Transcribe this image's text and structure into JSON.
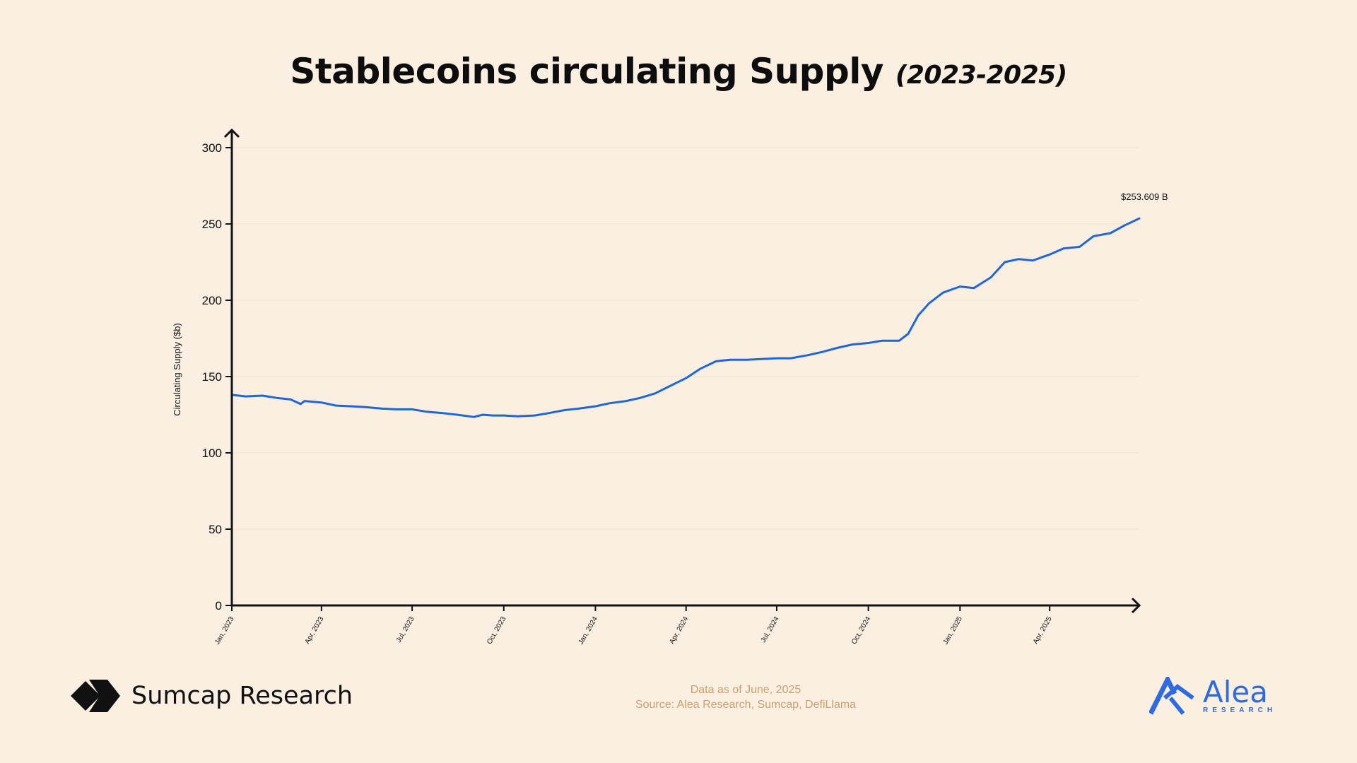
{
  "header": {
    "title": "Stablecoins circulating Supply",
    "subtitle": "(2023-2025)"
  },
  "footer": {
    "data_as_of": "Data as of June, 2025",
    "source": "Source: Alea Research, Sumcap, DefiLlama",
    "left_brand": "Sumcap Research",
    "right_brand": "Alea",
    "right_brand_sub": "RESEARCH"
  },
  "colors": {
    "background": "#fbefe1",
    "line": "#1f66d9",
    "brand_blue": "#2f6be0",
    "footer_text": "#c8a06f"
  },
  "chart_data": {
    "type": "line",
    "title": "Stablecoins circulating Supply (2023-2025)",
    "xlabel": "",
    "ylabel": "Circulating Supply ($b)",
    "ylim": [
      0,
      300
    ],
    "yticks": [
      0,
      50,
      100,
      150,
      200,
      250,
      300
    ],
    "xticks": [
      "2023-01-01",
      "2023-04-01",
      "2023-07-01",
      "2023-10-01",
      "2024-01-01",
      "2024-04-01",
      "2024-07-01",
      "2024-10-01",
      "2025-01-01",
      "2025-04-01"
    ],
    "xtick_labels": [
      "Jan, 2023",
      "Apr, 2023",
      "Jul, 2023",
      "Oct, 2023",
      "Jan, 2024",
      "Apr, 2024",
      "Jul, 2024",
      "Oct, 2024",
      "Jan, 2025",
      "Apr, 2025"
    ],
    "xlim": [
      "2023-01-01",
      "2025-06-30"
    ],
    "grid": true,
    "annotation": "$253.609 B",
    "series": [
      {
        "x": [
          "2023-01-01",
          "2023-01-15",
          "2023-02-01",
          "2023-02-15",
          "2023-03-01",
          "2023-03-11",
          "2023-03-15",
          "2023-04-01",
          "2023-04-15",
          "2023-05-01",
          "2023-05-15",
          "2023-06-01",
          "2023-06-15",
          "2023-07-01",
          "2023-07-15",
          "2023-08-01",
          "2023-08-15",
          "2023-09-01",
          "2023-09-10",
          "2023-09-20",
          "2023-10-01",
          "2023-10-15",
          "2023-11-01",
          "2023-11-15",
          "2023-12-01",
          "2023-12-15",
          "2024-01-01",
          "2024-01-15",
          "2024-02-01",
          "2024-02-15",
          "2024-03-01",
          "2024-03-15",
          "2024-04-01",
          "2024-04-15",
          "2024-05-01",
          "2024-05-15",
          "2024-06-01",
          "2024-06-15",
          "2024-07-01",
          "2024-07-15",
          "2024-08-01",
          "2024-08-15",
          "2024-09-01",
          "2024-09-15",
          "2024-10-01",
          "2024-10-15",
          "2024-11-01",
          "2024-11-10",
          "2024-11-20",
          "2024-12-01",
          "2024-12-15",
          "2025-01-01",
          "2025-01-15",
          "2025-02-01",
          "2025-02-15",
          "2025-03-01",
          "2025-03-15",
          "2025-04-01",
          "2025-04-15",
          "2025-05-01",
          "2025-05-15",
          "2025-06-01",
          "2025-06-15",
          "2025-06-30"
        ],
        "y": [
          138,
          137,
          137.5,
          136,
          135,
          132,
          134,
          133,
          131,
          130.5,
          130,
          129,
          128.5,
          128.5,
          127,
          126,
          125,
          123.5,
          125,
          124.5,
          124.5,
          124,
          124.5,
          126,
          128,
          129,
          130.5,
          132.5,
          134,
          136,
          139,
          143.5,
          149,
          155,
          160,
          161,
          161,
          161.5,
          162,
          162,
          164,
          166,
          169,
          171,
          172,
          173.5,
          173.5,
          178,
          190,
          198,
          205,
          209,
          208,
          215,
          225,
          227,
          226,
          230,
          234,
          235,
          242,
          244,
          249,
          253.6
        ]
      }
    ]
  }
}
